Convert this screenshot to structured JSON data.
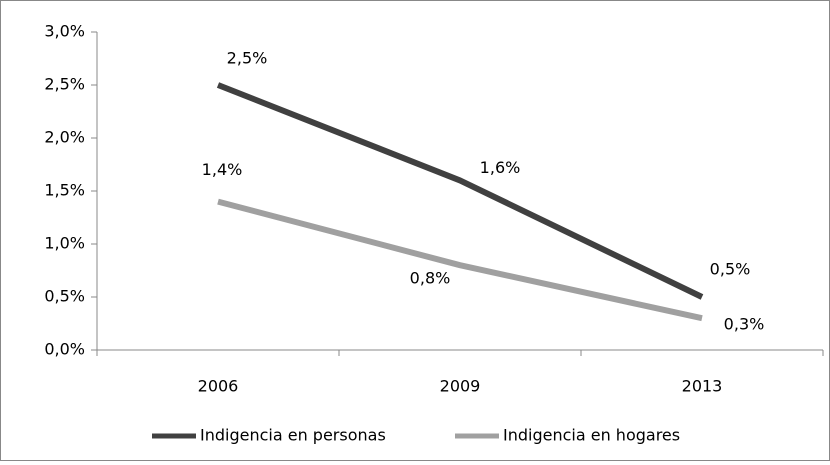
{
  "chart_data": {
    "type": "line",
    "categories": [
      "2006",
      "2009",
      "2013"
    ],
    "series": [
      {
        "name": "Indigencia en personas",
        "color": "#404040",
        "values": [
          2.5,
          1.6,
          0.5
        ],
        "value_labels": [
          "2,5%",
          "1,6%",
          "0,5%"
        ]
      },
      {
        "name": "Indigencia en hogares",
        "color": "#a0a0a0",
        "values": [
          1.4,
          0.8,
          0.3
        ],
        "value_labels": [
          "1,4%",
          "0,8%",
          "0,3%"
        ]
      }
    ],
    "ylim": [
      0,
      3
    ],
    "yticks": [
      {
        "value": 0,
        "label": "0,0%"
      },
      {
        "value": 0.5,
        "label": "0,5%"
      },
      {
        "value": 1,
        "label": "1,0%"
      },
      {
        "value": 1.5,
        "label": "1,5%"
      },
      {
        "value": 2,
        "label": "2,0%"
      },
      {
        "value": 2.5,
        "label": "2,5%"
      },
      {
        "value": 3,
        "label": "3,0%"
      }
    ],
    "grid": false,
    "legend": "bottom"
  }
}
